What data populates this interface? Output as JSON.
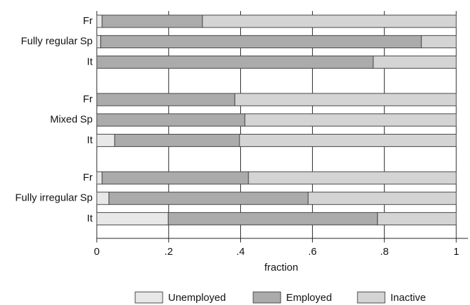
{
  "chart_data": {
    "type": "stacked-bar-horizontal",
    "group_labels": [
      "Fully regular",
      "Mixed",
      "Fully irregular"
    ],
    "categories": [
      "Fr",
      "Sp",
      "It",
      "Fr",
      "Sp",
      "It",
      "Fr",
      "Sp",
      "It"
    ],
    "series": [
      {
        "name": "Unemployed",
        "color": "#e8e8e8",
        "values": [
          0.015,
          0.011,
          0,
          0,
          0,
          0.05,
          0.015,
          0.034,
          0.199
        ]
      },
      {
        "name": "Employed",
        "color": "#ababab",
        "values": [
          0.279,
          0.892,
          0.769,
          0.384,
          0.412,
          0.347,
          0.407,
          0.554,
          0.582
        ]
      },
      {
        "name": "Inactive",
        "color": "#d4d4d4",
        "values": [
          0.706,
          0.097,
          0.231,
          0.616,
          0.588,
          0.603,
          0.578,
          0.412,
          0.219
        ]
      }
    ],
    "x_label": "fraction",
    "xlim": [
      0,
      1
    ],
    "xticks": [
      0,
      {
        "value": 0.2,
        "label": ".2"
      },
      {
        "value": 0.4,
        "label": ".4"
      },
      {
        "value": 0.6,
        "label": ".6"
      },
      {
        "value": 0.8,
        "label": ".8"
      },
      1
    ],
    "grid": true,
    "legend": "bottom"
  }
}
